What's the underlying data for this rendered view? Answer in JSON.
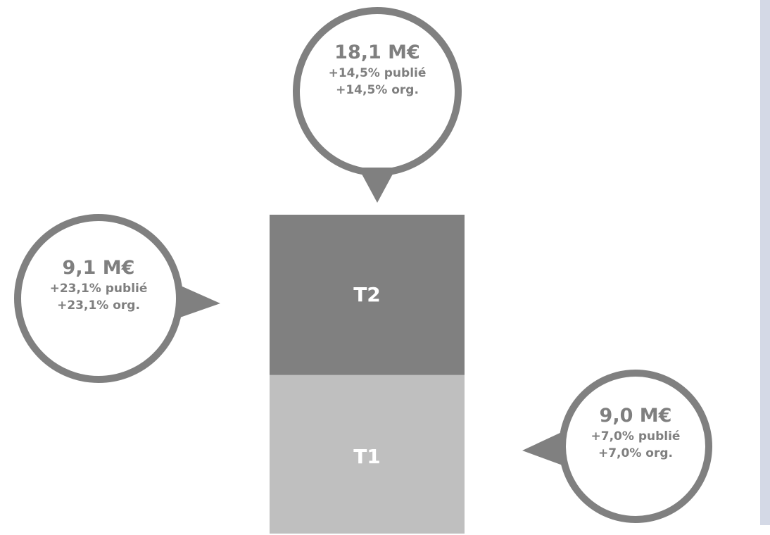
{
  "colors": {
    "bubble_stroke": "#808080",
    "bubble_text": "#7f7f7f",
    "segment_t2": "#808080",
    "segment_t1": "#bfbfbf",
    "segment_label": "#ffffff",
    "side_strip": "#d4d9e6"
  },
  "chart_data": {
    "type": "bar",
    "stacked": true,
    "categories": [
      ""
    ],
    "series": [
      {
        "name": "T1",
        "values": [
          9.0
        ]
      },
      {
        "name": "T2",
        "values": [
          9.1
        ]
      }
    ],
    "total": 18.1,
    "unit": "M€",
    "annotations": {
      "total": {
        "main": "18,1 M€",
        "line1": "+14,5% publié",
        "line2": "+14,5% org."
      },
      "t2": {
        "main": "9,1 M€",
        "line1": "+23,1% publié",
        "line2": "+23,1% org."
      },
      "t1": {
        "main": "9,0 M€",
        "line1": "+7,0% publié",
        "line2": "+7,0% org."
      }
    },
    "title": "",
    "xlabel": "",
    "ylabel": "",
    "legend": "none",
    "grid": false
  }
}
